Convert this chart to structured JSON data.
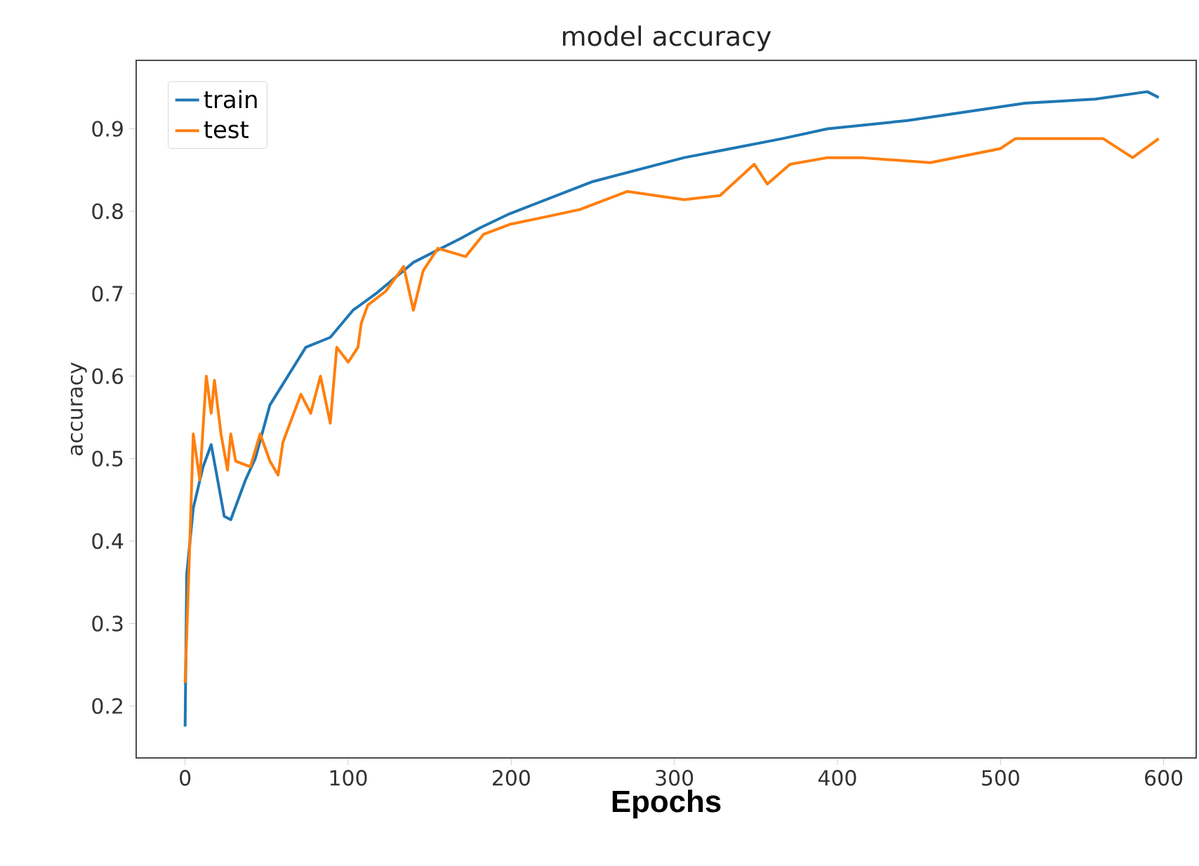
{
  "chart_data": {
    "type": "line",
    "title": "model accuracy",
    "xlabel": "Epochs",
    "ylabel": "accuracy",
    "xlim": [
      -30,
      620
    ],
    "ylim": [
      0.137,
      0.983
    ],
    "xticks": [
      0,
      100,
      200,
      300,
      400,
      500,
      600
    ],
    "yticks": [
      0.2,
      0.3,
      0.4,
      0.5,
      0.6,
      0.7,
      0.8,
      0.9
    ],
    "legend": "top left",
    "grid": false,
    "series": [
      {
        "name": "train",
        "color": "#1f77b4",
        "x": [
          0,
          1,
          5,
          11,
          16,
          24,
          28,
          37,
          43,
          52,
          74,
          89,
          103,
          117,
          140,
          169,
          181,
          199,
          250,
          306,
          366,
          394,
          443,
          515,
          558,
          590,
          597
        ],
        "values": [
          0.175,
          0.36,
          0.44,
          0.49,
          0.517,
          0.43,
          0.426,
          0.474,
          0.5,
          0.565,
          0.635,
          0.647,
          0.68,
          0.7,
          0.738,
          0.767,
          0.78,
          0.797,
          0.836,
          0.865,
          0.888,
          0.9,
          0.91,
          0.931,
          0.936,
          0.945,
          0.938
        ]
      },
      {
        "name": "test",
        "color": "#ff7f0e",
        "x": [
          0,
          3,
          5,
          9,
          13,
          16,
          18,
          22,
          26,
          28,
          31,
          40,
          46,
          52,
          57,
          60,
          71,
          77,
          83,
          89,
          93,
          100,
          106,
          108,
          112,
          123,
          134,
          140,
          146,
          155,
          172,
          183,
          199,
          242,
          271,
          306,
          328,
          349,
          357,
          371,
          394,
          414,
          457,
          500,
          509,
          535,
          563,
          581,
          597
        ],
        "values": [
          0.228,
          0.405,
          0.53,
          0.474,
          0.6,
          0.555,
          0.595,
          0.53,
          0.486,
          0.53,
          0.497,
          0.49,
          0.53,
          0.497,
          0.48,
          0.52,
          0.578,
          0.555,
          0.6,
          0.543,
          0.635,
          0.617,
          0.635,
          0.664,
          0.686,
          0.703,
          0.733,
          0.68,
          0.728,
          0.755,
          0.745,
          0.772,
          0.784,
          0.802,
          0.824,
          0.814,
          0.819,
          0.857,
          0.833,
          0.857,
          0.865,
          0.865,
          0.859,
          0.876,
          0.888,
          0.888,
          0.888,
          0.865,
          0.888
        ]
      }
    ]
  }
}
